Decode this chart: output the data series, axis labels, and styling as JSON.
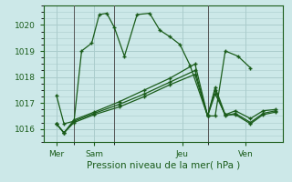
{
  "background_color": "#cce8e8",
  "grid_color": "#aacccc",
  "line_color": "#1a5c1a",
  "xlabel": "Pression niveau de la mer( hPa )",
  "ylim": [
    1015.5,
    1020.75
  ],
  "yticks": [
    1016,
    1017,
    1018,
    1019,
    1020
  ],
  "xlim": [
    0,
    9.5
  ],
  "xtick_positions": [
    0.5,
    2.0,
    5.5,
    8.0
  ],
  "xtick_labels": [
    "Mer",
    "Sam",
    "Jeu",
    "Ven"
  ],
  "vlines": [
    1.2,
    2.8,
    6.5
  ],
  "series": [
    {
      "x": [
        0.5,
        0.8,
        1.2,
        1.5,
        1.9,
        2.2,
        2.5,
        2.8,
        3.2,
        3.7,
        4.2,
        4.6,
        5.0,
        5.4,
        5.8,
        6.5,
        6.8,
        7.2,
        7.7,
        8.2
      ],
      "y": [
        1017.3,
        1016.2,
        1016.3,
        1019.0,
        1019.3,
        1020.4,
        1020.45,
        1019.9,
        1018.8,
        1020.4,
        1020.45,
        1019.8,
        1019.55,
        1019.25,
        1018.45,
        1016.5,
        1016.5,
        1019.0,
        1018.8,
        1018.35
      ]
    },
    {
      "x": [
        0.5,
        0.8,
        1.2,
        2.0,
        3.0,
        4.0,
        5.0,
        6.0,
        6.5,
        6.8,
        7.2,
        7.6,
        8.2,
        8.7,
        9.2
      ],
      "y": [
        1016.2,
        1015.85,
        1016.25,
        1016.55,
        1016.85,
        1017.25,
        1017.7,
        1018.1,
        1016.5,
        1017.35,
        1016.55,
        1016.55,
        1016.2,
        1016.55,
        1016.65
      ]
    },
    {
      "x": [
        0.5,
        0.8,
        1.2,
        2.0,
        3.0,
        4.0,
        5.0,
        6.0,
        6.5,
        6.8,
        7.2,
        7.6,
        8.2,
        8.7,
        9.2
      ],
      "y": [
        1016.2,
        1015.85,
        1016.3,
        1016.6,
        1016.95,
        1017.35,
        1017.8,
        1018.25,
        1016.5,
        1017.5,
        1016.5,
        1016.6,
        1016.25,
        1016.6,
        1016.7
      ]
    },
    {
      "x": [
        0.5,
        0.8,
        1.2,
        2.0,
        3.0,
        4.0,
        5.0,
        6.0,
        6.5,
        6.8,
        7.2,
        7.6,
        8.2,
        8.7,
        9.2
      ],
      "y": [
        1016.2,
        1015.85,
        1016.35,
        1016.65,
        1017.05,
        1017.5,
        1017.95,
        1018.5,
        1016.5,
        1017.6,
        1016.55,
        1016.7,
        1016.4,
        1016.7,
        1016.75
      ]
    }
  ]
}
